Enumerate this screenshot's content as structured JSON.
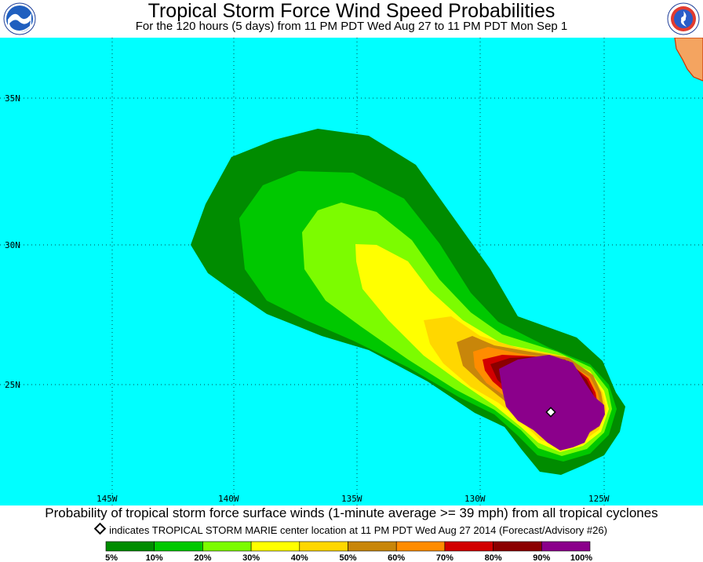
{
  "header": {
    "title": "Tropical Storm Force Wind Speed Probabilities",
    "subtitle": "For the 120 hours (5 days) from 11 PM PDT Wed Aug 27 to 11 PM PDT Mon Sep 1",
    "left_logo": "NOAA",
    "right_logo": "NATIONAL WEATHER SERVICE"
  },
  "map": {
    "ocean_color": "#00ffff",
    "land_color": "#f4a460",
    "lat_labels": [
      "35N",
      "30N",
      "25N"
    ],
    "lon_labels": [
      "145W",
      "140W",
      "135W",
      "130W",
      "125W"
    ],
    "storm_center_marker": "diamond"
  },
  "footer": {
    "caption": "Probability of tropical storm force surface winds (1-minute average >= 39 mph) from all tropical cyclones",
    "note": "indicates TROPICAL STORM MARIE center location at 11 PM PDT Wed Aug 27 2014 (Forecast/Advisory #26)"
  },
  "legend": {
    "labels": [
      "5%",
      "10%",
      "20%",
      "30%",
      "40%",
      "50%",
      "60%",
      "70%",
      "80%",
      "90%",
      "100%"
    ],
    "colors": [
      "#008c00",
      "#00c800",
      "#7cfc00",
      "#ffff00",
      "#ffd700",
      "#c8860a",
      "#ff8c00",
      "#d20000",
      "#8b0000",
      "#8b008b"
    ]
  }
}
